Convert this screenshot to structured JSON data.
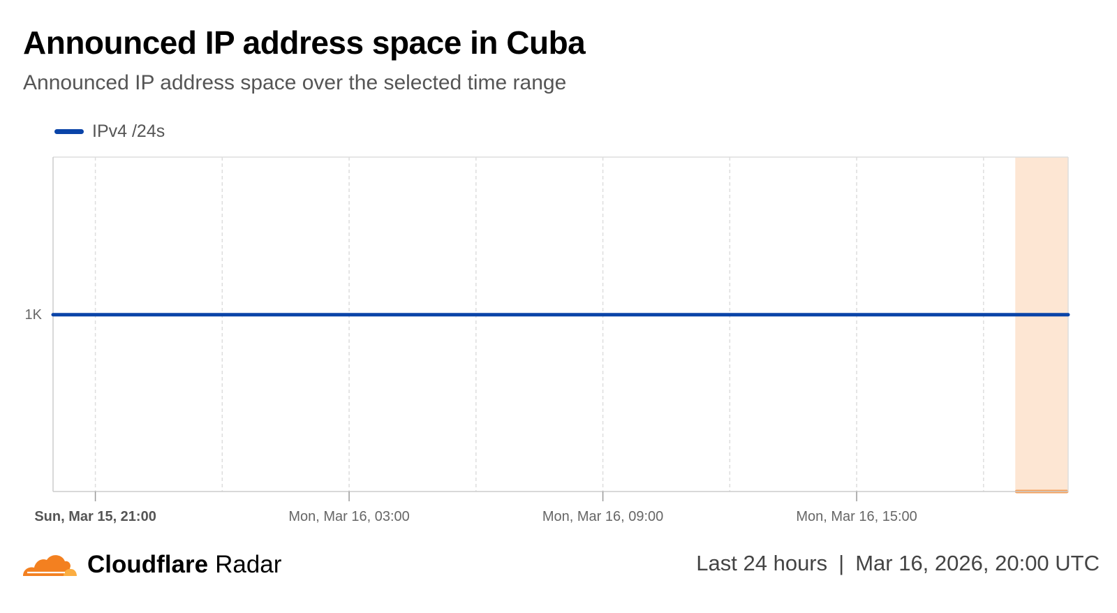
{
  "title": "Announced IP address space in Cuba",
  "subtitle": "Announced IP address space over the selected time range",
  "legend": [
    {
      "label": "IPv4 /24s",
      "color": "#0a44a8"
    }
  ],
  "footer": {
    "brand": "Cloudflare",
    "product": "Radar",
    "range": "Last 24 hours",
    "separator": "|",
    "timestamp": "Mar 16, 2026, 20:00 UTC"
  },
  "colors": {
    "series": "#0a44a8",
    "highlight_fill": "#fde6d3",
    "highlight_line": "#f5a05a",
    "grid": "#dddddd",
    "axis": "#cccccc",
    "brand_orange": "#f38020",
    "brand_orange_light": "#fbad41"
  },
  "chart_data": {
    "type": "line",
    "x_start": "2026-03-15 20:00",
    "x_end": "2026-03-16 20:00",
    "x_ticks": [
      {
        "t": "2026-03-15 21:00",
        "label": "Sun, Mar 15, 21:00",
        "bold": true
      },
      {
        "t": "2026-03-16 03:00",
        "label": "Mon, Mar 16, 03:00",
        "bold": false
      },
      {
        "t": "2026-03-16 09:00",
        "label": "Mon, Mar 16, 09:00",
        "bold": false
      },
      {
        "t": "2026-03-16 15:00",
        "label": "Mon, Mar 16, 15:00",
        "bold": false
      }
    ],
    "grid_times": [
      "2026-03-15 21:00",
      "2026-03-16 00:00",
      "2026-03-16 03:00",
      "2026-03-16 06:00",
      "2026-03-16 09:00",
      "2026-03-16 12:00",
      "2026-03-16 15:00",
      "2026-03-16 18:00"
    ],
    "y_ticks": [
      {
        "value": 1000,
        "label": "1K"
      }
    ],
    "ylim": [
      0,
      1910
    ],
    "grid": true,
    "legend_position": "top-left",
    "highlight": {
      "start": "2026-03-16 18:45",
      "end": "2026-03-16 20:00"
    },
    "series": [
      {
        "name": "IPv4 /24s",
        "x": [
          "2026-03-15 20:00",
          "2026-03-16 20:00"
        ],
        "y": [
          1010,
          1010
        ]
      }
    ]
  }
}
